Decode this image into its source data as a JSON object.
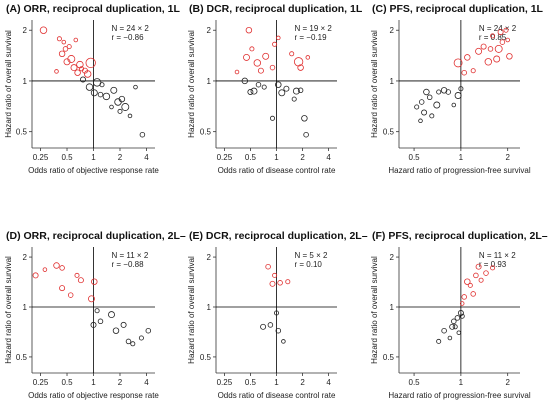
{
  "chart_data": [
    {
      "id": "A",
      "type": "scatter",
      "title": "(A) ORR, reciprocal duplication, 1L",
      "xlabel": "Odds ratio of objective response rate",
      "ylabel": "Hazard ratio of overall survival",
      "stat_n": "N = 24 × 2",
      "stat_r": "r = −0.86",
      "xscale": "log",
      "yscale": "log",
      "xlim": [
        0.2,
        5.0
      ],
      "ylim": [
        0.4,
        2.3
      ],
      "xticks": [
        0.25,
        0.5,
        1,
        2,
        4
      ],
      "xticklabels": [
        "0.25",
        "0.5",
        "1",
        "2",
        "4"
      ],
      "yticks": [
        0.5,
        1,
        2
      ],
      "yticklabels": [
        "0.5",
        "1",
        "2"
      ],
      "reference": {
        "x": 1,
        "y": 1
      },
      "series": [
        {
          "color": "#e03030",
          "points": [
            [
              0.27,
              2.0,
              1.0
            ],
            [
              0.38,
              1.14,
              0.4
            ],
            [
              0.41,
              1.78,
              0.5
            ],
            [
              0.44,
              1.45,
              0.8
            ],
            [
              0.46,
              1.7,
              0.4
            ],
            [
              0.48,
              1.55,
              0.6
            ],
            [
              0.5,
              1.3,
              0.9
            ],
            [
              0.53,
              1.6,
              0.5
            ],
            [
              0.56,
              1.35,
              1.1
            ],
            [
              0.6,
              1.2,
              0.9
            ],
            [
              0.63,
              1.75,
              0.4
            ],
            [
              0.66,
              1.12,
              0.8
            ],
            [
              0.7,
              1.25,
              1.0
            ],
            [
              0.73,
              1.18,
              0.5
            ],
            [
              0.8,
              1.15,
              0.7
            ],
            [
              0.86,
              1.1,
              1.0
            ],
            [
              0.93,
              1.28,
              1.6
            ]
          ]
        },
        {
          "color": "#222222",
          "points": [
            [
              0.76,
              1.02,
              0.7
            ],
            [
              0.9,
              0.92,
              1.0
            ],
            [
              1.02,
              0.85,
              0.9
            ],
            [
              1.1,
              0.98,
              1.2
            ],
            [
              1.2,
              0.83,
              0.6
            ],
            [
              1.25,
              0.95,
              0.5
            ],
            [
              1.4,
              0.81,
              1.0
            ],
            [
              1.6,
              0.7,
              0.4
            ],
            [
              1.7,
              0.88,
              0.9
            ],
            [
              1.9,
              0.75,
              1.0
            ],
            [
              2.0,
              0.66,
              0.5
            ],
            [
              2.1,
              0.78,
              0.8
            ],
            [
              2.3,
              0.7,
              1.1
            ],
            [
              2.6,
              0.62,
              0.4
            ],
            [
              3.0,
              0.92,
              0.4
            ],
            [
              3.6,
              0.48,
              0.6
            ]
          ]
        }
      ]
    },
    {
      "id": "B",
      "type": "scatter",
      "title": "(B) DCR, reciprocal duplication, 1L",
      "xlabel": "Odds ratio of disease control rate",
      "ylabel": "Hazard ratio of overall survival",
      "stat_n": "N = 19 × 2",
      "stat_r": "r = −0.19",
      "xscale": "log",
      "yscale": "log",
      "xlim": [
        0.2,
        5.0
      ],
      "ylim": [
        0.4,
        2.3
      ],
      "xticks": [
        0.25,
        0.5,
        1,
        2,
        4
      ],
      "xticklabels": [
        "0.25",
        "0.5",
        "1",
        "2",
        "4"
      ],
      "yticks": [
        0.5,
        1,
        2
      ],
      "yticklabels": [
        "0.5",
        "1",
        "2"
      ],
      "reference": {
        "x": 1,
        "y": 1
      },
      "series": [
        {
          "color": "#e03030",
          "points": [
            [
              0.35,
              1.13,
              0.4
            ],
            [
              0.45,
              1.38,
              0.9
            ],
            [
              0.48,
              2.0,
              0.8
            ],
            [
              0.52,
              1.55,
              0.5
            ],
            [
              0.6,
              1.28,
              1.0
            ],
            [
              0.66,
              1.15,
              0.7
            ],
            [
              0.75,
              1.4,
              0.9
            ],
            [
              0.9,
              1.2,
              0.6
            ],
            [
              0.95,
              1.65,
              0.5
            ],
            [
              1.05,
              1.8,
              0.4
            ],
            [
              1.5,
              1.45,
              0.5
            ],
            [
              1.8,
              1.3,
              1.4
            ],
            [
              1.9,
              1.2,
              0.8
            ],
            [
              2.3,
              1.38,
              0.4
            ]
          ]
        },
        {
          "color": "#222222",
          "points": [
            [
              0.43,
              1.0,
              0.8
            ],
            [
              0.5,
              0.86,
              0.7
            ],
            [
              0.55,
              0.87,
              0.9
            ],
            [
              0.62,
              0.95,
              0.6
            ],
            [
              0.72,
              0.92,
              0.5
            ],
            [
              0.9,
              0.6,
              0.5
            ],
            [
              1.05,
              0.95,
              0.8
            ],
            [
              1.15,
              0.85,
              0.9
            ],
            [
              1.3,
              0.9,
              0.7
            ],
            [
              1.6,
              0.78,
              0.5
            ],
            [
              1.7,
              0.87,
              0.9
            ],
            [
              1.9,
              0.88,
              0.6
            ],
            [
              2.1,
              0.6,
              0.8
            ],
            [
              2.2,
              0.48,
              0.6
            ]
          ]
        }
      ]
    },
    {
      "id": "C",
      "type": "scatter",
      "title": "(C) PFS, reciprocal duplication, 1L",
      "xlabel": "Hazard ratio of progression-free survival",
      "ylabel": "Hazard ratio of overall survival",
      "stat_n": "N = 24 × 2",
      "stat_r": "r = 0.85",
      "xscale": "log",
      "yscale": "log",
      "xlim": [
        0.4,
        2.4
      ],
      "ylim": [
        0.4,
        2.3
      ],
      "xticks": [
        0.5,
        1,
        2
      ],
      "xticklabels": [
        "0.5",
        "1",
        "2"
      ],
      "yticks": [
        0.5,
        1,
        2
      ],
      "yticklabels": [
        "0.5",
        "1",
        "2"
      ],
      "reference": {
        "x": 1,
        "y": 1
      },
      "series": [
        {
          "color": "#e03030",
          "points": [
            [
              0.96,
              1.28,
              1.3
            ],
            [
              1.05,
              1.12,
              0.6
            ],
            [
              1.1,
              1.38,
              0.8
            ],
            [
              1.2,
              1.15,
              0.5
            ],
            [
              1.3,
              1.5,
              0.9
            ],
            [
              1.4,
              1.6,
              0.7
            ],
            [
              1.5,
              1.3,
              1.0
            ],
            [
              1.55,
              1.55,
              0.6
            ],
            [
              1.6,
              1.85,
              0.5
            ],
            [
              1.7,
              1.35,
              0.9
            ],
            [
              1.75,
              1.55,
              1.1
            ],
            [
              1.8,
              1.95,
              0.7
            ],
            [
              1.85,
              1.7,
              0.6
            ],
            [
              1.95,
              2.0,
              0.5
            ],
            [
              2.0,
              1.75,
              0.4
            ],
            [
              2.05,
              1.4,
              0.8
            ]
          ]
        },
        {
          "color": "#222222",
          "points": [
            [
              0.52,
              0.7,
              0.5
            ],
            [
              0.55,
              0.58,
              0.4
            ],
            [
              0.56,
              0.75,
              0.6
            ],
            [
              0.58,
              0.65,
              0.7
            ],
            [
              0.6,
              0.86,
              0.8
            ],
            [
              0.63,
              0.8,
              0.6
            ],
            [
              0.65,
              0.62,
              0.5
            ],
            [
              0.7,
              0.72,
              0.9
            ],
            [
              0.72,
              0.86,
              0.5
            ],
            [
              0.78,
              0.88,
              0.8
            ],
            [
              0.83,
              0.86,
              0.6
            ],
            [
              0.9,
              0.72,
              0.4
            ],
            [
              0.96,
              0.82,
              0.9
            ],
            [
              1.0,
              0.9,
              0.5
            ]
          ]
        }
      ]
    },
    {
      "id": "D",
      "type": "scatter",
      "title": "(D) ORR, reciprocal duplication, 2L–",
      "xlabel": "Odds ratio of objective response rate",
      "ylabel": "Hazard ratio of overall survival",
      "stat_n": "N = 11 × 2",
      "stat_r": "r = −0.88",
      "xscale": "log",
      "yscale": "log",
      "xlim": [
        0.2,
        5.0
      ],
      "ylim": [
        0.4,
        2.3
      ],
      "xticks": [
        0.25,
        0.5,
        1,
        2,
        4
      ],
      "xticklabels": [
        "0.25",
        "0.5",
        "1",
        "2",
        "4"
      ],
      "yticks": [
        0.5,
        1,
        2
      ],
      "yticklabels": [
        "0.5",
        "1",
        "2"
      ],
      "reference": {
        "x": 1,
        "y": 1
      },
      "series": [
        {
          "color": "#e03030",
          "points": [
            [
              0.22,
              1.55,
              0.7
            ],
            [
              0.28,
              1.68,
              0.4
            ],
            [
              0.38,
              1.78,
              0.8
            ],
            [
              0.44,
              1.72,
              0.6
            ],
            [
              0.44,
              1.3,
              0.7
            ],
            [
              0.55,
              1.18,
              0.6
            ],
            [
              0.65,
              1.55,
              0.5
            ],
            [
              0.72,
              1.45,
              0.7
            ],
            [
              0.95,
              1.12,
              0.9
            ],
            [
              1.02,
              1.42,
              0.8
            ]
          ]
        },
        {
          "color": "#222222",
          "points": [
            [
              1.0,
              0.78,
              0.7
            ],
            [
              1.1,
              0.95,
              0.5
            ],
            [
              1.2,
              0.82,
              0.6
            ],
            [
              1.6,
              0.9,
              0.9
            ],
            [
              1.8,
              0.72,
              0.8
            ],
            [
              2.2,
              0.78,
              0.7
            ],
            [
              2.5,
              0.62,
              0.6
            ],
            [
              2.8,
              0.6,
              0.5
            ],
            [
              3.5,
              0.65,
              0.5
            ],
            [
              4.2,
              0.72,
              0.6
            ]
          ]
        }
      ]
    },
    {
      "id": "E",
      "type": "scatter",
      "title": "(E) DCR, reciprocal duplication, 2L–",
      "xlabel": "Odds ratio of disease control rate",
      "ylabel": "Hazard ratio of overall survival",
      "stat_n": "N = 5 × 2",
      "stat_r": "r = 0.10",
      "xscale": "log",
      "yscale": "log",
      "xlim": [
        0.2,
        5.0
      ],
      "ylim": [
        0.4,
        2.3
      ],
      "xticks": [
        0.25,
        0.5,
        1,
        2,
        4
      ],
      "xticklabels": [
        "0.25",
        "0.5",
        "1",
        "2",
        "4"
      ],
      "yticks": [
        0.5,
        1,
        2
      ],
      "yticklabels": [
        "0.5",
        "1",
        "2"
      ],
      "reference": {
        "x": 1,
        "y": 1
      },
      "series": [
        {
          "color": "#e03030",
          "points": [
            [
              0.8,
              1.75,
              0.6
            ],
            [
              0.9,
              1.38,
              0.7
            ],
            [
              0.95,
              1.55,
              0.5
            ],
            [
              1.1,
              1.4,
              0.6
            ],
            [
              1.35,
              1.42,
              0.5
            ]
          ]
        },
        {
          "color": "#222222",
          "points": [
            [
              0.7,
              0.76,
              0.7
            ],
            [
              0.85,
              0.78,
              0.6
            ],
            [
              1.0,
              0.92,
              0.5
            ],
            [
              1.05,
              0.72,
              0.6
            ],
            [
              1.2,
              0.62,
              0.4
            ]
          ]
        }
      ]
    },
    {
      "id": "F",
      "type": "scatter",
      "title": "(F) PFS, reciprocal duplication, 2L–",
      "xlabel": "Hazard ratio of progression-free survival",
      "ylabel": "Hazard ratio of overall survival",
      "stat_n": "N = 11 × 2",
      "stat_r": "r = 0.93",
      "xscale": "log",
      "yscale": "log",
      "xlim": [
        0.4,
        2.4
      ],
      "ylim": [
        0.4,
        2.3
      ],
      "xticks": [
        0.5,
        1,
        2
      ],
      "xticklabels": [
        "0.5",
        "1",
        "2"
      ],
      "yticks": [
        0.5,
        1,
        2
      ],
      "yticklabels": [
        "0.5",
        "1",
        "2"
      ],
      "reference": {
        "x": 1,
        "y": 1
      },
      "series": [
        {
          "color": "#e03030",
          "points": [
            [
              1.05,
              1.15,
              0.6
            ],
            [
              1.1,
              1.42,
              0.8
            ],
            [
              1.15,
              1.35,
              0.5
            ],
            [
              1.2,
              1.2,
              0.6
            ],
            [
              1.25,
              1.55,
              0.6
            ],
            [
              1.3,
              1.75,
              0.7
            ],
            [
              1.35,
              1.45,
              0.5
            ],
            [
              1.45,
              1.6,
              0.6
            ],
            [
              1.6,
              1.72,
              0.5
            ],
            [
              1.02,
              1.05,
              0.4
            ]
          ]
        },
        {
          "color": "#222222",
          "points": [
            [
              0.72,
              0.62,
              0.5
            ],
            [
              0.78,
              0.72,
              0.6
            ],
            [
              0.85,
              0.65,
              0.4
            ],
            [
              0.88,
              0.76,
              0.7
            ],
            [
              0.9,
              0.82,
              0.6
            ],
            [
              0.92,
              0.76,
              0.5
            ],
            [
              0.95,
              0.86,
              0.6
            ],
            [
              0.97,
              0.7,
              0.4
            ],
            [
              1.0,
              0.92,
              0.7
            ],
            [
              1.02,
              0.88,
              0.5
            ]
          ]
        }
      ]
    }
  ]
}
